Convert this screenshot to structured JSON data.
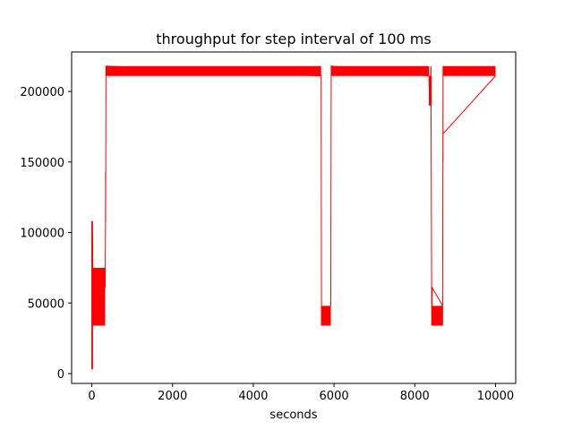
{
  "chart_data": {
    "type": "line",
    "title": "throughput for step interval of 100 ms",
    "xlabel": "seconds",
    "ylabel": "",
    "xlim": [
      -500,
      10500
    ],
    "ylim": [
      -7000,
      228000
    ],
    "xticks": [
      0,
      2000,
      4000,
      6000,
      8000,
      10000
    ],
    "xtick_labels": [
      "0",
      "2000",
      "4000",
      "6000",
      "8000",
      "10000"
    ],
    "yticks": [
      0,
      50000,
      100000,
      150000,
      200000
    ],
    "ytick_labels": [
      "0",
      "50000",
      "100000",
      "150000",
      "200000"
    ],
    "grid": false,
    "legend": "none",
    "series": [
      {
        "color": "#ff0000",
        "bands": [
          {
            "x": [
              0,
              30
            ],
            "y_low": 3000,
            "y_high": 108000
          },
          {
            "x": [
              30,
              330
            ],
            "y_low": 34000,
            "y_high": 75000
          },
          {
            "x": [
              330,
              345
            ],
            "y_low": 108000,
            "y_high": 143000
          },
          {
            "x": [
              345,
              5680
            ],
            "y_low": 211000,
            "y_high": 218000
          },
          {
            "x": [
              5680,
              5920
            ],
            "y_low": 34000,
            "y_high": 48000
          },
          {
            "x": [
              5920,
              8350
            ],
            "y_low": 211000,
            "y_high": 218000
          },
          {
            "x": [
              8350,
              8420
            ],
            "y_low": 190000,
            "y_high": 211000
          },
          {
            "x": [
              8420,
              8700
            ],
            "y_low": 34000,
            "y_high": 48000
          },
          {
            "x": [
              8700,
              10000
            ],
            "y_low": 211000,
            "y_high": 218000
          }
        ],
        "points": [
          [
            0,
            3000
          ],
          [
            0,
            108000
          ],
          [
            10,
            100000
          ],
          [
            20,
            95000
          ],
          [
            30,
            34000
          ],
          [
            60,
            75000
          ],
          [
            100,
            68000
          ],
          [
            150,
            62000
          ],
          [
            200,
            61000
          ],
          [
            330,
            61000
          ],
          [
            340,
            108000
          ],
          [
            345,
            143000
          ],
          [
            350,
            218000
          ],
          [
            5680,
            211000
          ],
          [
            5690,
            34000
          ],
          [
            5920,
            48000
          ],
          [
            5930,
            218000
          ],
          [
            8350,
            211000
          ],
          [
            8370,
            190000
          ],
          [
            8400,
            218000
          ],
          [
            8420,
            34000
          ],
          [
            8430,
            61000
          ],
          [
            8690,
            48000
          ],
          [
            8700,
            218000
          ],
          [
            8700,
            150000
          ],
          [
            8700,
            170000
          ],
          [
            10000,
            211000
          ]
        ]
      }
    ]
  }
}
